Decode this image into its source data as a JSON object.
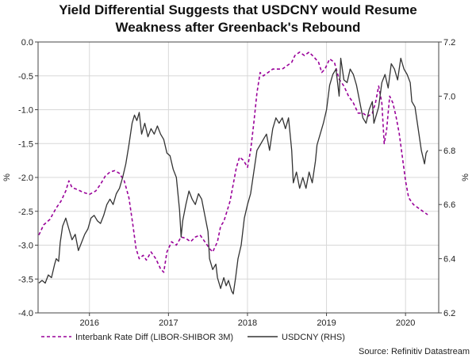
{
  "chart_data": {
    "type": "line",
    "title_lines": [
      "Yield Differential Suggests that USDCNY would Resume",
      "Weakness after Greenback's Rebound"
    ],
    "left_axis": {
      "label": "%",
      "min": -4.0,
      "max": 0.0,
      "ticks": [
        "0.0",
        "-0.5",
        "-1.0",
        "-1.5",
        "-2.0",
        "-2.5",
        "-3.0",
        "-3.5",
        "-4.0"
      ]
    },
    "right_axis": {
      "label": "%",
      "min": 6.2,
      "max": 7.2,
      "ticks": [
        "7.2",
        "7.0",
        "6.8",
        "6.6",
        "6.4",
        "6.2"
      ]
    },
    "x_axis": {
      "min": 2015.35,
      "max": 2020.42,
      "ticks": [
        2016,
        2017,
        2018,
        2019,
        2020
      ],
      "tick_labels": [
        "2016",
        "2017",
        "2018",
        "2019",
        "2020"
      ]
    },
    "grid": true,
    "legend_position": "bottom",
    "source": "Source: Refinitiv Datastream",
    "series": [
      {
        "name": "Interbank Rate Diff (LIBOR-SHIBOR 3M)",
        "axis": "left",
        "color": "#990099",
        "dash": "dashed",
        "points": [
          [
            2015.36,
            -2.85
          ],
          [
            2015.42,
            -2.7
          ],
          [
            2015.5,
            -2.62
          ],
          [
            2015.58,
            -2.45
          ],
          [
            2015.64,
            -2.35
          ],
          [
            2015.7,
            -2.2
          ],
          [
            2015.74,
            -2.05
          ],
          [
            2015.78,
            -2.15
          ],
          [
            2015.85,
            -2.18
          ],
          [
            2015.92,
            -2.22
          ],
          [
            2016.0,
            -2.25
          ],
          [
            2016.08,
            -2.2
          ],
          [
            2016.14,
            -2.1
          ],
          [
            2016.2,
            -1.98
          ],
          [
            2016.26,
            -1.92
          ],
          [
            2016.32,
            -1.9
          ],
          [
            2016.38,
            -1.94
          ],
          [
            2016.44,
            -2.05
          ],
          [
            2016.5,
            -2.3
          ],
          [
            2016.55,
            -2.7
          ],
          [
            2016.59,
            -3.05
          ],
          [
            2016.63,
            -3.2
          ],
          [
            2016.68,
            -3.15
          ],
          [
            2016.72,
            -3.22
          ],
          [
            2016.78,
            -3.1
          ],
          [
            2016.84,
            -3.2
          ],
          [
            2016.9,
            -3.35
          ],
          [
            2016.94,
            -3.4
          ],
          [
            2016.98,
            -3.1
          ],
          [
            2017.04,
            -2.95
          ],
          [
            2017.1,
            -3.0
          ],
          [
            2017.16,
            -2.88
          ],
          [
            2017.22,
            -2.9
          ],
          [
            2017.28,
            -2.95
          ],
          [
            2017.34,
            -2.88
          ],
          [
            2017.4,
            -2.85
          ],
          [
            2017.46,
            -2.95
          ],
          [
            2017.52,
            -3.05
          ],
          [
            2017.56,
            -3.1
          ],
          [
            2017.62,
            -2.95
          ],
          [
            2017.66,
            -2.72
          ],
          [
            2017.7,
            -2.65
          ],
          [
            2017.74,
            -2.5
          ],
          [
            2017.78,
            -2.35
          ],
          [
            2017.82,
            -2.1
          ],
          [
            2017.86,
            -1.85
          ],
          [
            2017.9,
            -1.7
          ],
          [
            2017.95,
            -1.75
          ],
          [
            2018.0,
            -1.85
          ],
          [
            2018.04,
            -1.6
          ],
          [
            2018.08,
            -1.2
          ],
          [
            2018.12,
            -0.75
          ],
          [
            2018.16,
            -0.45
          ],
          [
            2018.2,
            -0.5
          ],
          [
            2018.26,
            -0.45
          ],
          [
            2018.32,
            -0.4
          ],
          [
            2018.38,
            -0.4
          ],
          [
            2018.44,
            -0.4
          ],
          [
            2018.5,
            -0.35
          ],
          [
            2018.56,
            -0.3
          ],
          [
            2018.6,
            -0.2
          ],
          [
            2018.66,
            -0.15
          ],
          [
            2018.72,
            -0.2
          ],
          [
            2018.78,
            -0.15
          ],
          [
            2018.84,
            -0.22
          ],
          [
            2018.9,
            -0.3
          ],
          [
            2018.94,
            -0.45
          ],
          [
            2018.98,
            -0.4
          ],
          [
            2019.04,
            -0.25
          ],
          [
            2019.1,
            -0.3
          ],
          [
            2019.16,
            -0.55
          ],
          [
            2019.22,
            -0.65
          ],
          [
            2019.28,
            -0.8
          ],
          [
            2019.34,
            -0.9
          ],
          [
            2019.4,
            -1.05
          ],
          [
            2019.46,
            -1.05
          ],
          [
            2019.52,
            -1.1
          ],
          [
            2019.58,
            -1.05
          ],
          [
            2019.62,
            -0.9
          ],
          [
            2019.66,
            -0.65
          ],
          [
            2019.7,
            -0.9
          ],
          [
            2019.73,
            -1.5
          ],
          [
            2019.76,
            -1.3
          ],
          [
            2019.8,
            -0.8
          ],
          [
            2019.84,
            -0.9
          ],
          [
            2019.88,
            -1.1
          ],
          [
            2019.92,
            -1.35
          ],
          [
            2019.96,
            -1.7
          ],
          [
            2020.0,
            -2.05
          ],
          [
            2020.04,
            -2.3
          ],
          [
            2020.1,
            -2.4
          ],
          [
            2020.16,
            -2.45
          ],
          [
            2020.22,
            -2.5
          ],
          [
            2020.28,
            -2.55
          ]
        ]
      },
      {
        "name": "USDCNY (RHS)",
        "axis": "right",
        "color": "#333333",
        "dash": "solid",
        "points": [
          [
            2015.36,
            6.31
          ],
          [
            2015.4,
            6.32
          ],
          [
            2015.44,
            6.31
          ],
          [
            2015.48,
            6.34
          ],
          [
            2015.52,
            6.33
          ],
          [
            2015.56,
            6.38
          ],
          [
            2015.58,
            6.4
          ],
          [
            2015.61,
            6.39
          ],
          [
            2015.63,
            6.46
          ],
          [
            2015.66,
            6.52
          ],
          [
            2015.7,
            6.55
          ],
          [
            2015.74,
            6.51
          ],
          [
            2015.78,
            6.47
          ],
          [
            2015.82,
            6.49
          ],
          [
            2015.86,
            6.43
          ],
          [
            2015.9,
            6.46
          ],
          [
            2015.94,
            6.49
          ],
          [
            2015.98,
            6.51
          ],
          [
            2016.02,
            6.55
          ],
          [
            2016.06,
            6.56
          ],
          [
            2016.1,
            6.54
          ],
          [
            2016.14,
            6.53
          ],
          [
            2016.18,
            6.56
          ],
          [
            2016.22,
            6.6
          ],
          [
            2016.26,
            6.62
          ],
          [
            2016.3,
            6.6
          ],
          [
            2016.34,
            6.64
          ],
          [
            2016.38,
            6.66
          ],
          [
            2016.42,
            6.7
          ],
          [
            2016.46,
            6.75
          ],
          [
            2016.5,
            6.82
          ],
          [
            2016.54,
            6.9
          ],
          [
            2016.57,
            6.93
          ],
          [
            2016.6,
            6.91
          ],
          [
            2016.63,
            6.94
          ],
          [
            2016.66,
            6.86
          ],
          [
            2016.7,
            6.9
          ],
          [
            2016.74,
            6.85
          ],
          [
            2016.78,
            6.88
          ],
          [
            2016.82,
            6.86
          ],
          [
            2016.86,
            6.89
          ],
          [
            2016.9,
            6.86
          ],
          [
            2016.94,
            6.84
          ],
          [
            2016.98,
            6.79
          ],
          [
            2017.02,
            6.78
          ],
          [
            2017.06,
            6.73
          ],
          [
            2017.1,
            6.7
          ],
          [
            2017.14,
            6.58
          ],
          [
            2017.16,
            6.48
          ],
          [
            2017.18,
            6.54
          ],
          [
            2017.22,
            6.6
          ],
          [
            2017.26,
            6.65
          ],
          [
            2017.3,
            6.62
          ],
          [
            2017.34,
            6.6
          ],
          [
            2017.38,
            6.64
          ],
          [
            2017.42,
            6.62
          ],
          [
            2017.46,
            6.56
          ],
          [
            2017.5,
            6.5
          ],
          [
            2017.52,
            6.4
          ],
          [
            2017.56,
            6.36
          ],
          [
            2017.6,
            6.38
          ],
          [
            2017.62,
            6.33
          ],
          [
            2017.66,
            6.29
          ],
          [
            2017.7,
            6.33
          ],
          [
            2017.73,
            6.3
          ],
          [
            2017.76,
            6.32
          ],
          [
            2017.8,
            6.28
          ],
          [
            2017.82,
            6.27
          ],
          [
            2017.85,
            6.33
          ],
          [
            2017.88,
            6.4
          ],
          [
            2017.92,
            6.45
          ],
          [
            2017.96,
            6.55
          ],
          [
            2018.0,
            6.6
          ],
          [
            2018.04,
            6.64
          ],
          [
            2018.08,
            6.72
          ],
          [
            2018.12,
            6.8
          ],
          [
            2018.16,
            6.82
          ],
          [
            2018.2,
            6.84
          ],
          [
            2018.24,
            6.86
          ],
          [
            2018.28,
            6.8
          ],
          [
            2018.32,
            6.88
          ],
          [
            2018.36,
            6.92
          ],
          [
            2018.4,
            6.9
          ],
          [
            2018.44,
            6.92
          ],
          [
            2018.48,
            6.88
          ],
          [
            2018.52,
            6.92
          ],
          [
            2018.56,
            6.8
          ],
          [
            2018.58,
            6.68
          ],
          [
            2018.62,
            6.72
          ],
          [
            2018.66,
            6.66
          ],
          [
            2018.7,
            6.7
          ],
          [
            2018.74,
            6.66
          ],
          [
            2018.78,
            6.72
          ],
          [
            2018.82,
            6.68
          ],
          [
            2018.86,
            6.76
          ],
          [
            2018.88,
            6.82
          ],
          [
            2018.92,
            6.86
          ],
          [
            2018.96,
            6.9
          ],
          [
            2019.0,
            6.95
          ],
          [
            2019.04,
            7.04
          ],
          [
            2019.08,
            7.08
          ],
          [
            2019.12,
            7.1
          ],
          [
            2019.16,
            7.0
          ],
          [
            2019.18,
            7.14
          ],
          [
            2019.22,
            7.06
          ],
          [
            2019.26,
            7.05
          ],
          [
            2019.3,
            7.1
          ],
          [
            2019.34,
            7.08
          ],
          [
            2019.38,
            7.04
          ],
          [
            2019.42,
            6.98
          ],
          [
            2019.46,
            6.92
          ],
          [
            2019.5,
            6.9
          ],
          [
            2019.54,
            6.95
          ],
          [
            2019.58,
            6.98
          ],
          [
            2019.6,
            6.9
          ],
          [
            2019.63,
            6.93
          ],
          [
            2019.66,
            6.96
          ],
          [
            2019.7,
            7.05
          ],
          [
            2019.74,
            7.08
          ],
          [
            2019.78,
            7.03
          ],
          [
            2019.82,
            7.12
          ],
          [
            2019.86,
            7.1
          ],
          [
            2019.9,
            7.06
          ],
          [
            2019.94,
            7.14
          ],
          [
            2019.98,
            7.1
          ],
          [
            2020.02,
            7.08
          ],
          [
            2020.06,
            7.05
          ],
          [
            2020.08,
            6.98
          ],
          [
            2020.12,
            6.96
          ],
          [
            2020.16,
            6.88
          ],
          [
            2020.2,
            6.8
          ],
          [
            2020.24,
            6.75
          ],
          [
            2020.26,
            6.79
          ],
          [
            2020.28,
            6.8
          ]
        ]
      }
    ]
  }
}
